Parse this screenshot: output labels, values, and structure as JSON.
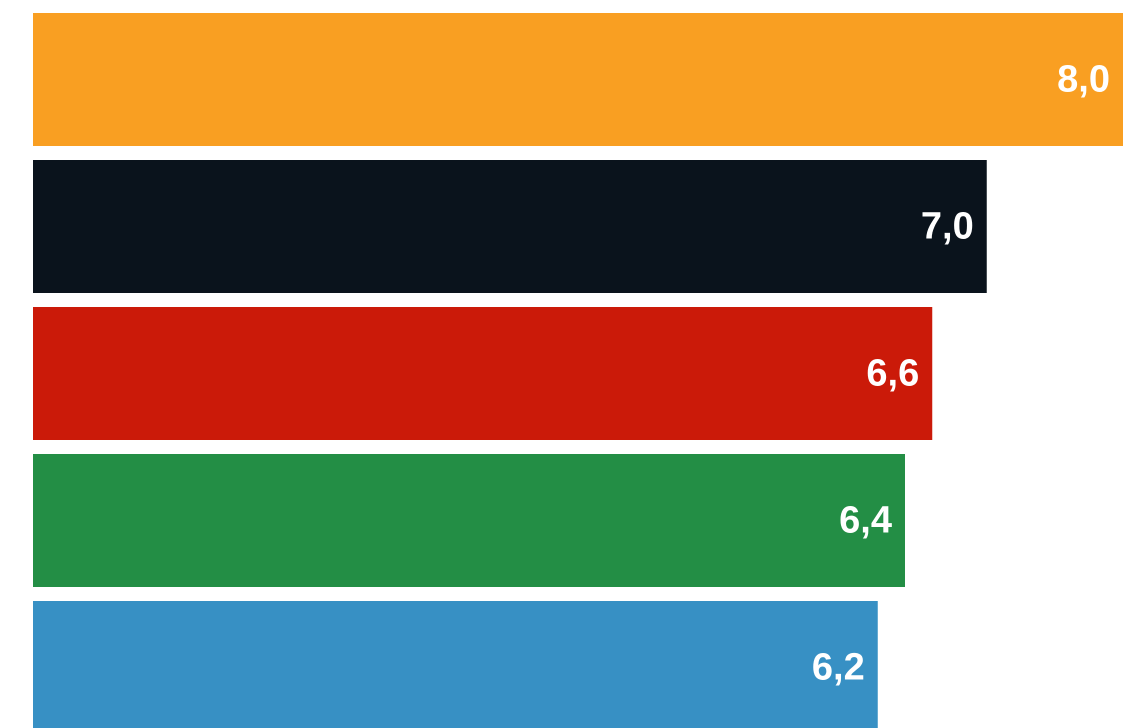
{
  "chart_data": {
    "type": "bar",
    "orientation": "horizontal",
    "values": [
      8.0,
      7.0,
      6.6,
      6.4,
      6.2
    ],
    "value_labels": [
      "8,0",
      "7,0",
      "6,6",
      "6,4",
      "6,2"
    ],
    "colors": [
      "#F99F22",
      "#0A131C",
      "#CB1A09",
      "#238E45",
      "#3790C4"
    ],
    "xlim": [
      0,
      8.0
    ],
    "grid": false,
    "legend": "none"
  }
}
